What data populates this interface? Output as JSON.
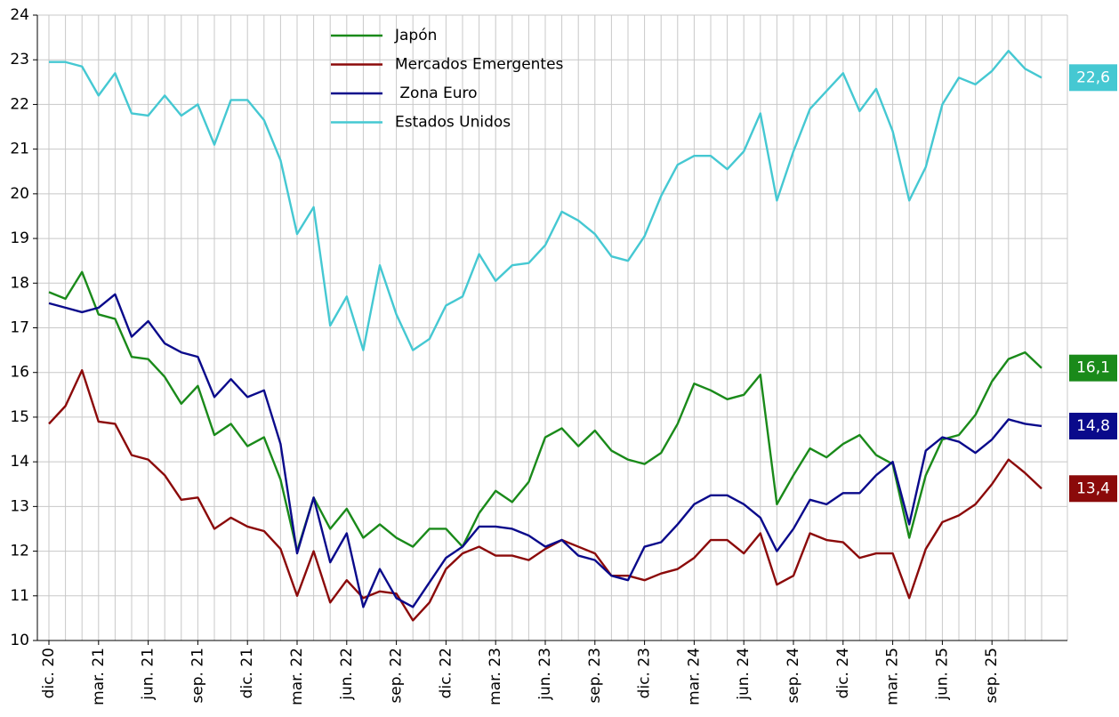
{
  "chart_data": {
    "type": "line",
    "categories": [
      "dic. 20",
      null,
      null,
      "mar. 21",
      null,
      null,
      "jun. 21",
      null,
      null,
      "sep. 21",
      null,
      null,
      "dic. 21",
      null,
      null,
      "mar. 22",
      null,
      null,
      "jun. 22",
      null,
      null,
      "sep. 22",
      null,
      null,
      "dic. 22",
      null,
      null,
      "mar. 23",
      null,
      null,
      "jun. 23",
      null,
      null,
      "sep. 23",
      null,
      null,
      "dic. 23",
      null,
      null,
      "mar. 24",
      null,
      null,
      "jun. 24",
      null,
      null,
      "sep. 24",
      null,
      null,
      "dic. 24",
      null,
      null,
      "mar. 25",
      null,
      null,
      "jun. 25",
      null,
      null,
      "sep. 25",
      null,
      null,
      null
    ],
    "series": [
      {
        "name": "Japón",
        "color": "#1a8a1a",
        "values": [
          17.8,
          17.65,
          18.25,
          17.3,
          17.2,
          16.35,
          16.3,
          15.9,
          15.3,
          15.7,
          14.6,
          14.85,
          14.35,
          14.55,
          13.6,
          12.0,
          13.2,
          12.5,
          12.95,
          12.3,
          12.6,
          12.3,
          12.1,
          12.5,
          12.5,
          12.1,
          12.85,
          13.35,
          13.1,
          13.55,
          14.55,
          14.75,
          14.35,
          14.7,
          14.25,
          14.05,
          13.95,
          14.2,
          14.85,
          15.75,
          15.6,
          15.4,
          15.5,
          15.95,
          13.05,
          13.7,
          14.3,
          14.1,
          14.4,
          14.6,
          14.15,
          13.95,
          12.3,
          13.7,
          14.5,
          14.6,
          15.05,
          15.8,
          16.3,
          16.45,
          16.1
        ],
        "value_labels": [
          null,
          null,
          null,
          null,
          null,
          null,
          null,
          null,
          null,
          null,
          null,
          null,
          null,
          null,
          null,
          null,
          null,
          null,
          null,
          null,
          null,
          null,
          null,
          null,
          null,
          null,
          null,
          null,
          null,
          null,
          null,
          null,
          null,
          null,
          null,
          null,
          null,
          null,
          null,
          null,
          null,
          null,
          null,
          null,
          null,
          null,
          null,
          null,
          null,
          null,
          null,
          null,
          null,
          null,
          null,
          null,
          null,
          null,
          null,
          null,
          "16,1"
        ]
      },
      {
        "name": "Mercados Emergentes",
        "color": "#8b0a0a",
        "values": [
          14.85,
          15.25,
          16.05,
          14.9,
          14.85,
          14.15,
          14.05,
          13.7,
          13.15,
          13.2,
          12.5,
          12.75,
          12.55,
          12.45,
          12.05,
          11.0,
          12.0,
          10.85,
          11.35,
          10.95,
          11.1,
          11.05,
          10.45,
          10.85,
          11.6,
          11.95,
          12.1,
          11.9,
          11.9,
          11.8,
          12.05,
          12.25,
          12.1,
          11.95,
          11.45,
          11.45,
          11.35,
          11.5,
          11.6,
          11.85,
          12.25,
          12.25,
          11.95,
          12.4,
          11.25,
          11.45,
          12.4,
          12.25,
          12.2,
          11.85,
          11.95,
          11.95,
          10.95,
          12.05,
          12.65,
          12.8,
          13.05,
          13.5,
          14.05,
          13.75,
          13.4
        ],
        "value_labels": [
          null,
          null,
          null,
          null,
          null,
          null,
          null,
          null,
          null,
          null,
          null,
          null,
          null,
          null,
          null,
          null,
          null,
          null,
          null,
          null,
          null,
          null,
          null,
          null,
          null,
          null,
          null,
          null,
          null,
          null,
          null,
          null,
          null,
          null,
          null,
          null,
          null,
          null,
          null,
          null,
          null,
          null,
          null,
          null,
          null,
          null,
          null,
          null,
          null,
          null,
          null,
          null,
          null,
          null,
          null,
          null,
          null,
          null,
          null,
          null,
          "13,4"
        ]
      },
      {
        "name": " Zona Euro",
        "color": "#0a0a8b",
        "values": [
          17.55,
          17.45,
          17.35,
          17.45,
          17.75,
          16.8,
          17.15,
          16.65,
          16.45,
          16.35,
          15.45,
          15.85,
          15.45,
          15.6,
          14.4,
          11.95,
          13.2,
          11.75,
          12.4,
          10.75,
          11.6,
          10.95,
          10.75,
          11.3,
          11.85,
          12.1,
          12.55,
          12.55,
          12.5,
          12.35,
          12.1,
          12.25,
          11.9,
          11.8,
          11.45,
          11.35,
          12.1,
          12.2,
          12.6,
          13.05,
          13.25,
          13.25,
          13.05,
          12.75,
          12.0,
          12.5,
          13.15,
          13.05,
          13.3,
          13.3,
          13.7,
          14.0,
          12.6,
          14.25,
          14.55,
          14.45,
          14.2,
          14.5,
          14.95,
          14.85,
          14.8
        ],
        "value_labels": [
          null,
          null,
          null,
          null,
          null,
          null,
          null,
          null,
          null,
          null,
          null,
          null,
          null,
          null,
          null,
          null,
          null,
          null,
          null,
          null,
          null,
          null,
          null,
          null,
          null,
          null,
          null,
          null,
          null,
          null,
          null,
          null,
          null,
          null,
          null,
          null,
          null,
          null,
          null,
          null,
          null,
          null,
          null,
          null,
          null,
          null,
          null,
          null,
          null,
          null,
          null,
          null,
          null,
          null,
          null,
          null,
          null,
          null,
          null,
          null,
          "14,8"
        ]
      },
      {
        "name": "Estados Unidos",
        "color": "#45c8d2",
        "values": [
          22.95,
          22.95,
          22.85,
          22.2,
          22.7,
          21.8,
          21.75,
          22.2,
          21.75,
          22.0,
          21.1,
          22.1,
          22.1,
          21.65,
          20.75,
          19.1,
          19.7,
          17.05,
          17.7,
          16.5,
          18.4,
          17.3,
          16.5,
          16.75,
          17.5,
          17.7,
          18.65,
          18.05,
          18.4,
          18.45,
          18.85,
          19.6,
          19.4,
          19.1,
          18.6,
          18.5,
          19.05,
          19.95,
          20.65,
          20.85,
          20.85,
          20.55,
          20.95,
          21.8,
          19.85,
          20.95,
          21.9,
          22.3,
          22.7,
          21.85,
          22.35,
          21.4,
          19.85,
          20.6,
          22.0,
          22.6,
          22.45,
          22.75,
          23.2,
          22.8,
          22.6
        ],
        "value_labels": [
          null,
          null,
          null,
          null,
          null,
          null,
          null,
          null,
          null,
          null,
          null,
          null,
          null,
          null,
          null,
          null,
          null,
          null,
          null,
          null,
          null,
          null,
          null,
          null,
          null,
          null,
          null,
          null,
          null,
          null,
          null,
          null,
          null,
          null,
          null,
          null,
          null,
          null,
          null,
          null,
          null,
          null,
          null,
          null,
          null,
          null,
          null,
          null,
          null,
          null,
          null,
          null,
          null,
          null,
          null,
          null,
          null,
          null,
          null,
          null,
          "22,6"
        ]
      }
    ],
    "ylim": [
      10,
      24
    ],
    "yticks": [
      10,
      11,
      12,
      13,
      14,
      15,
      16,
      17,
      18,
      19,
      20,
      21,
      22,
      23,
      24
    ],
    "grid": true,
    "legend": "upper center"
  }
}
